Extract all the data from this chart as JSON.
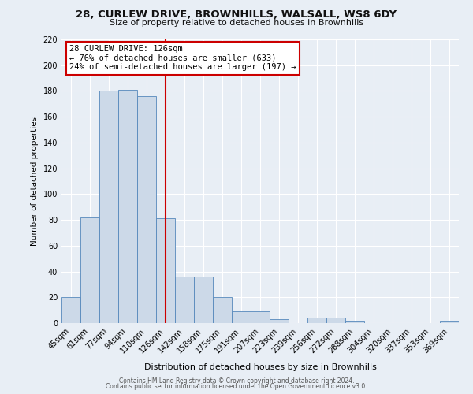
{
  "title1": "28, CURLEW DRIVE, BROWNHILLS, WALSALL, WS8 6DY",
  "title2": "Size of property relative to detached houses in Brownhills",
  "xlabel": "Distribution of detached houses by size in Brownhills",
  "ylabel": "Number of detached properties",
  "bin_labels": [
    "45sqm",
    "61sqm",
    "77sqm",
    "94sqm",
    "110sqm",
    "126sqm",
    "142sqm",
    "158sqm",
    "175sqm",
    "191sqm",
    "207sqm",
    "223sqm",
    "239sqm",
    "256sqm",
    "272sqm",
    "288sqm",
    "304sqm",
    "320sqm",
    "337sqm",
    "353sqm",
    "369sqm"
  ],
  "bar_heights": [
    20,
    82,
    180,
    181,
    176,
    81,
    36,
    36,
    20,
    9,
    9,
    3,
    0,
    4,
    4,
    2,
    0,
    0,
    0,
    0,
    2
  ],
  "bar_color": "#ccd9e8",
  "bar_edge_color": "#5588bb",
  "vline_x_index": 5,
  "vline_color": "#cc0000",
  "annotation_title": "28 CURLEW DRIVE: 126sqm",
  "annotation_line1": "← 76% of detached houses are smaller (633)",
  "annotation_line2": "24% of semi-detached houses are larger (197) →",
  "annotation_box_color": "#ffffff",
  "annotation_box_edge_color": "#cc0000",
  "ylim": [
    0,
    220
  ],
  "yticks": [
    0,
    20,
    40,
    60,
    80,
    100,
    120,
    140,
    160,
    180,
    200,
    220
  ],
  "footer1": "Contains HM Land Registry data © Crown copyright and database right 2024.",
  "footer2": "Contains public sector information licensed under the Open Government Licence v3.0.",
  "bg_color": "#e8eef5",
  "plot_bg_color": "#e8eef5"
}
